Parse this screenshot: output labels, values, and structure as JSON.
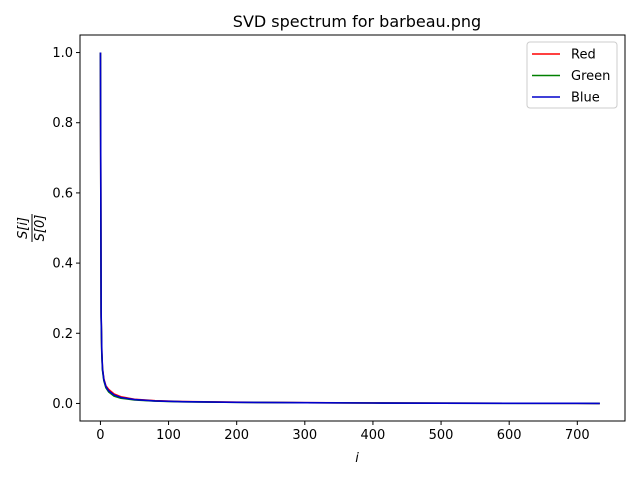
{
  "chart_data": {
    "type": "line",
    "title": "SVD spectrum for barbeau.png",
    "xlabel": "i",
    "ylabel_num": "S[i]",
    "ylabel_den": "S[0]",
    "xlim": [
      -30,
      770
    ],
    "ylim": [
      -0.05,
      1.05
    ],
    "x_ticks": [
      0,
      100,
      200,
      300,
      400,
      500,
      600,
      700
    ],
    "y_ticks": [
      0.0,
      0.2,
      0.4,
      0.6,
      0.8,
      1.0
    ],
    "y_tick_labels": [
      "0.0",
      "0.2",
      "0.4",
      "0.6",
      "0.8",
      "1.0"
    ],
    "grid": false,
    "legend_position": "top-right",
    "x": [
      0,
      1,
      2,
      3,
      5,
      8,
      12,
      20,
      30,
      50,
      80,
      120,
      200,
      300,
      400,
      500,
      600,
      700,
      733
    ],
    "series": [
      {
        "name": "Red",
        "color": "#ff0000",
        "values": [
          1.0,
          0.25,
          0.145,
          0.1,
          0.07,
          0.05,
          0.04,
          0.027,
          0.019,
          0.012,
          0.008,
          0.0055,
          0.0035,
          0.0022,
          0.0014,
          0.0009,
          0.0006,
          0.0003,
          0.0001
        ]
      },
      {
        "name": "Green",
        "color": "#008000",
        "values": [
          1.0,
          0.245,
          0.14,
          0.095,
          0.065,
          0.045,
          0.033,
          0.021,
          0.015,
          0.01,
          0.0068,
          0.0048,
          0.0031,
          0.002,
          0.0013,
          0.0008,
          0.0005,
          0.0003,
          0.0001
        ]
      },
      {
        "name": "Blue",
        "color": "#0000cc",
        "values": [
          1.0,
          0.26,
          0.15,
          0.1,
          0.068,
          0.048,
          0.036,
          0.024,
          0.017,
          0.011,
          0.0072,
          0.005,
          0.0032,
          0.0021,
          0.0013,
          0.0008,
          0.0005,
          0.0003,
          0.0001
        ]
      }
    ]
  }
}
